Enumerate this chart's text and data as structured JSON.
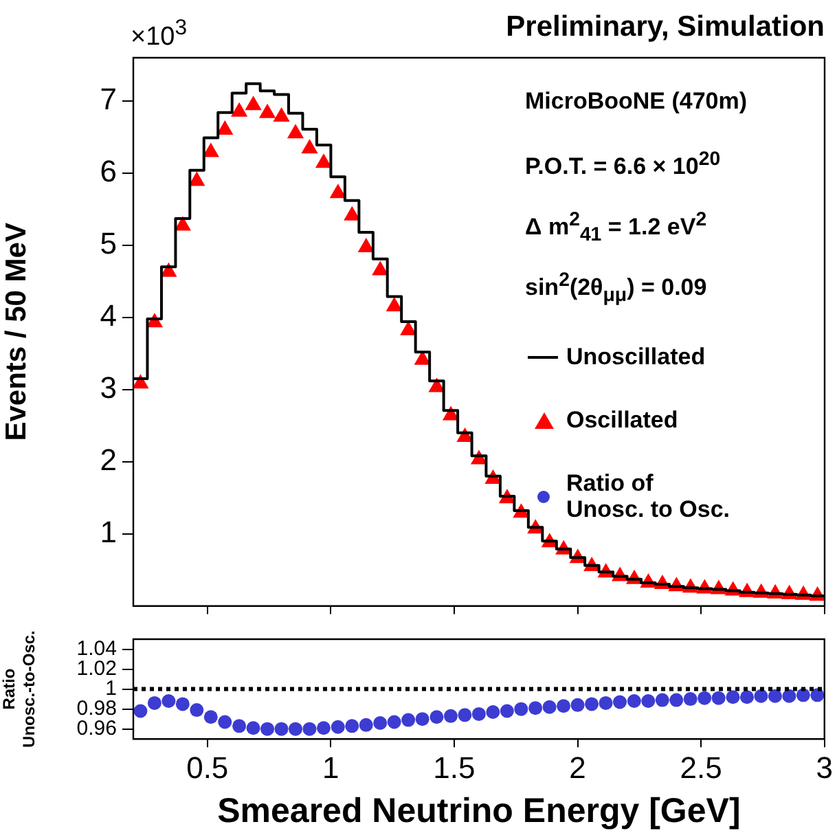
{
  "chart_data": [
    {
      "type": "histogram",
      "title": "Preliminary, Simulation",
      "ylabel": "Events / 50 MeV",
      "annotations": [
        "×10$^{3}$",
        "MicroBooNE (470m)",
        "P.O.T. = 6.6 × 10$^{20}$",
        "Δ m$^{2}$$_{41}$ =  1.2 eV$^{2}$",
        "sin$^{2}$(2θ$_{μμ}$) = 0.09"
      ],
      "bins": [
        0.2,
        0.257,
        0.314,
        0.371,
        0.429,
        0.486,
        0.543,
        0.6,
        0.657,
        0.714,
        0.771,
        0.829,
        0.886,
        0.943,
        1.0,
        1.057,
        1.114,
        1.171,
        1.229,
        1.286,
        1.343,
        1.4,
        1.457,
        1.514,
        1.571,
        1.629,
        1.686,
        1.743,
        1.8,
        1.857,
        1.914,
        1.971,
        2.029,
        2.086,
        2.143,
        2.2,
        2.257,
        2.314,
        2.371,
        2.429,
        2.486,
        2.543,
        2.6,
        2.657,
        2.714,
        2.771,
        2.829,
        2.886,
        2.943,
        3.0
      ],
      "series": [
        {
          "name": "Unoscillated",
          "color": "#000000",
          "values": [
            3.15,
            3.98,
            4.7,
            5.37,
            6.04,
            6.49,
            6.84,
            7.11,
            7.24,
            7.14,
            7.09,
            6.83,
            6.61,
            6.39,
            5.95,
            5.62,
            5.18,
            4.81,
            4.29,
            3.94,
            3.52,
            3.12,
            2.71,
            2.4,
            2.08,
            1.8,
            1.52,
            1.32,
            1.09,
            0.9,
            0.79,
            0.67,
            0.56,
            0.47,
            0.41,
            0.37,
            0.32,
            0.3,
            0.27,
            0.25,
            0.24,
            0.23,
            0.21,
            0.19,
            0.18,
            0.17,
            0.16,
            0.15,
            0.14
          ]
        },
        {
          "name": "Oscillated",
          "type": "scatter",
          "marker": "triangle",
          "color": "#ff0000",
          "x": [
            0.229,
            0.286,
            0.343,
            0.4,
            0.457,
            0.514,
            0.571,
            0.629,
            0.686,
            0.743,
            0.8,
            0.857,
            0.914,
            0.971,
            1.029,
            1.086,
            1.143,
            1.2,
            1.257,
            1.314,
            1.371,
            1.429,
            1.486,
            1.543,
            1.6,
            1.657,
            1.714,
            1.771,
            1.829,
            1.886,
            1.943,
            2.0,
            2.057,
            2.114,
            2.171,
            2.229,
            2.286,
            2.343,
            2.4,
            2.457,
            2.514,
            2.571,
            2.629,
            2.686,
            2.743,
            2.8,
            2.857,
            2.914,
            2.971
          ],
          "values": [
            3.08,
            3.93,
            4.63,
            5.27,
            5.89,
            6.29,
            6.6,
            6.85,
            6.94,
            6.83,
            6.78,
            6.55,
            6.34,
            6.14,
            5.72,
            5.41,
            4.97,
            4.65,
            4.15,
            3.82,
            3.41,
            3.03,
            2.64,
            2.34,
            2.03,
            1.76,
            1.49,
            1.29,
            1.07,
            0.88,
            0.78,
            0.66,
            0.55,
            0.46,
            0.41,
            0.37,
            0.32,
            0.3,
            0.27,
            0.25,
            0.24,
            0.23,
            0.21,
            0.19,
            0.18,
            0.17,
            0.16,
            0.15,
            0.14
          ]
        }
      ],
      "xlim": [
        0.2,
        3
      ],
      "xticks": [
        0.5,
        1,
        1.5,
        2,
        2.5,
        3
      ],
      "ylim": [
        0,
        7.6
      ],
      "yticks": [
        1,
        2,
        3,
        4,
        5,
        6,
        7
      ],
      "tick_labels": "y",
      "legend": "right"
    },
    {
      "type": "scatter",
      "xlabel": "Smeared Neutrino Energy [GeV]",
      "ylabel": "Ratio\nUnosc.-to-Osc.",
      "x": [
        0.229,
        0.286,
        0.343,
        0.4,
        0.457,
        0.514,
        0.571,
        0.629,
        0.686,
        0.743,
        0.8,
        0.857,
        0.914,
        0.971,
        1.029,
        1.086,
        1.143,
        1.2,
        1.257,
        1.314,
        1.371,
        1.429,
        1.486,
        1.543,
        1.6,
        1.657,
        1.714,
        1.771,
        1.829,
        1.886,
        1.943,
        2.0,
        2.057,
        2.114,
        2.171,
        2.229,
        2.286,
        2.343,
        2.4,
        2.457,
        2.514,
        2.571,
        2.629,
        2.686,
        2.743,
        2.8,
        2.857,
        2.914,
        2.971
      ],
      "series": [
        {
          "name": "Ratio of\nUnosc. to Osc.",
          "marker": "circle",
          "color": "#3c3cd2",
          "values": [
            0.978,
            0.986,
            0.988,
            0.985,
            0.979,
            0.972,
            0.967,
            0.963,
            0.961,
            0.96,
            0.96,
            0.96,
            0.96,
            0.961,
            0.962,
            0.963,
            0.964,
            0.966,
            0.967,
            0.969,
            0.97,
            0.972,
            0.973,
            0.974,
            0.975,
            0.977,
            0.978,
            0.98,
            0.981,
            0.982,
            0.983,
            0.984,
            0.985,
            0.986,
            0.987,
            0.988,
            0.988,
            0.989,
            0.989,
            0.99,
            0.991,
            0.991,
            0.992,
            0.992,
            0.993,
            0.993,
            0.993,
            0.994,
            0.994
          ]
        }
      ],
      "ref_lines": [
        {
          "axis": "y",
          "value": 1,
          "color": "#000000",
          "line_style": "dotted"
        }
      ],
      "xlim": [
        0.2,
        3
      ],
      "xticks": [
        0.5,
        1,
        1.5,
        2,
        2.5,
        3
      ],
      "ylim": [
        0.95,
        1.05
      ],
      "yticks": [
        0.96,
        0.98,
        1,
        1.02,
        1.04
      ],
      "legend": "top right"
    }
  ]
}
